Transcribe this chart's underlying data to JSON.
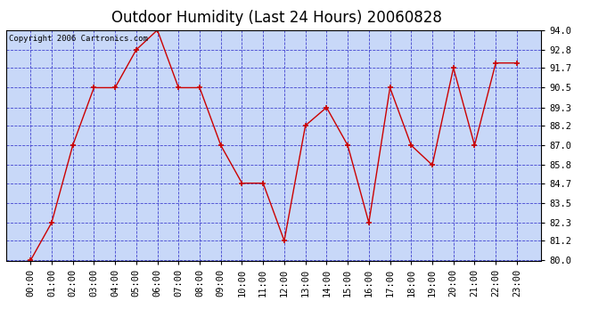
{
  "title": "Outdoor Humidity (Last 24 Hours) 20060828",
  "copyright_text": "Copyright 2006 Cartronics.com",
  "x_labels": [
    "00:00",
    "01:00",
    "02:00",
    "03:00",
    "04:00",
    "05:00",
    "06:00",
    "07:00",
    "08:00",
    "09:00",
    "10:00",
    "11:00",
    "12:00",
    "13:00",
    "14:00",
    "15:00",
    "16:00",
    "17:00",
    "18:00",
    "19:00",
    "20:00",
    "21:00",
    "22:00",
    "23:00"
  ],
  "y_values": [
    80.0,
    82.3,
    87.0,
    90.5,
    90.5,
    92.8,
    94.0,
    90.5,
    90.5,
    87.0,
    84.7,
    84.7,
    81.2,
    88.2,
    89.3,
    87.0,
    82.3,
    90.5,
    87.0,
    85.8,
    91.7,
    87.0,
    92.0,
    92.0
  ],
  "ylim": [
    80.0,
    94.0
  ],
  "yticks": [
    80.0,
    81.2,
    82.3,
    83.5,
    84.7,
    85.8,
    87.0,
    88.2,
    89.3,
    90.5,
    91.7,
    92.8,
    94.0
  ],
  "line_color": "#cc0000",
  "marker_color": "#cc0000",
  "bg_color": "#ffffff",
  "plot_bg_color": "#c8d8f8",
  "grid_color": "#3333cc",
  "border_color": "#000000",
  "title_fontsize": 12,
  "tick_fontsize": 7.5,
  "copyright_fontsize": 6.5
}
